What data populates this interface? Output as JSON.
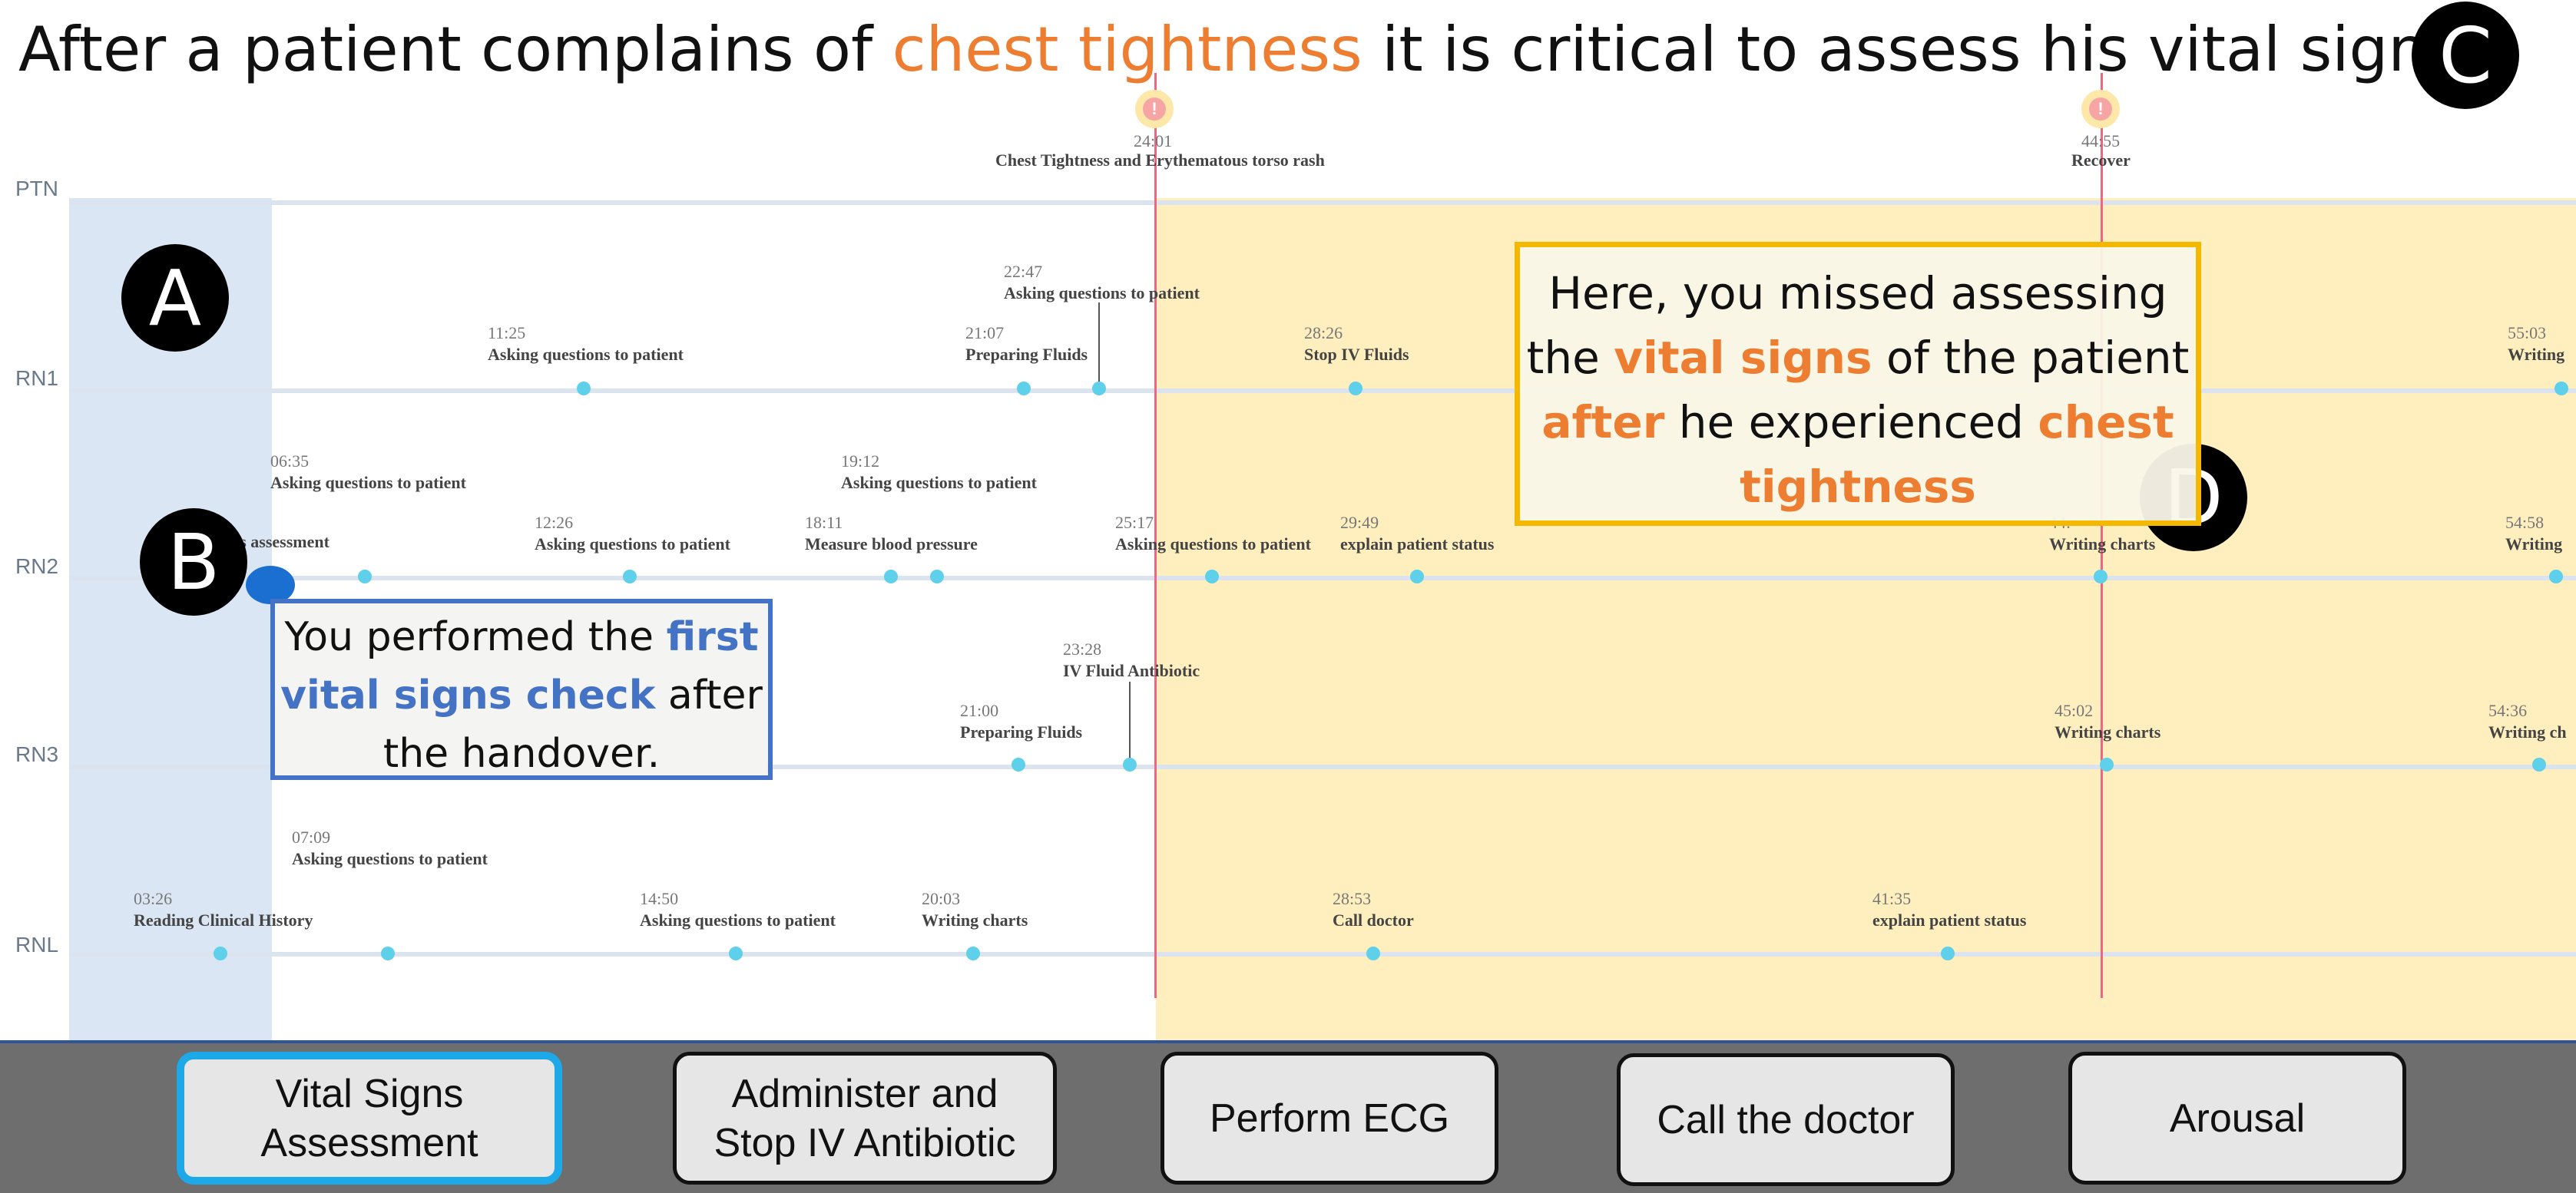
{
  "headline": {
    "before": "After a patient complains of ",
    "highlight": "chest tightness",
    "after": " it is critical to assess his vital signs"
  },
  "badges": {
    "a": "A",
    "b": "B",
    "c": "C",
    "d": "D"
  },
  "lanes": [
    "PTN",
    "RN1",
    "RN2",
    "RN3",
    "RNL"
  ],
  "markers": [
    {
      "icon": "alert-icon",
      "time": "24:01",
      "label": "Chest Tightness and Erythematous torso rash"
    },
    {
      "icon": "alert-icon",
      "time": "44:55",
      "label": "Recover"
    }
  ],
  "rn1_events": [
    {
      "time": "11:25",
      "label": "Asking questions to patient"
    },
    {
      "time": "21:07",
      "label": "Preparing Fluids"
    },
    {
      "time": "22:47",
      "label": "Asking questions to patient"
    },
    {
      "time": "28:26",
      "label": "Stop IV Fluids"
    },
    {
      "time": "55:03",
      "label": "Writing"
    }
  ],
  "rn2_events": [
    {
      "time": "",
      "label": "ns assessment"
    },
    {
      "time": "06:35",
      "label": "Asking questions to patient"
    },
    {
      "time": "12:26",
      "label": "Asking questions to patient"
    },
    {
      "time": "18:11",
      "label": "Measure blood pressure"
    },
    {
      "time": "19:12",
      "label": "Asking questions to patient"
    },
    {
      "time": "25:17",
      "label": "Asking questions to patient"
    },
    {
      "time": "29:49",
      "label": "explain patient status"
    },
    {
      "time": "44:",
      "label": "Writing charts"
    },
    {
      "time": "54:58",
      "label": "Writing"
    }
  ],
  "rn3_events": [
    {
      "time": "21:00",
      "label": "Preparing Fluids"
    },
    {
      "time": "23:28",
      "label": "IV Fluid Antibiotic"
    },
    {
      "time": "45:02",
      "label": "Writing charts"
    },
    {
      "time": "54:36",
      "label": "Writing ch"
    }
  ],
  "rnl_events": [
    {
      "time": "03:26",
      "label": "Reading Clinical History"
    },
    {
      "time": "07:09",
      "label": "Asking questions to patient"
    },
    {
      "time": "14:50",
      "label": "Asking questions to patient"
    },
    {
      "time": "20:03",
      "label": "Writing charts"
    },
    {
      "time": "28:53",
      "label": "Call doctor"
    },
    {
      "time": "41:35",
      "label": "explain patient status"
    }
  ],
  "callout_b": {
    "line1_a": "You performed the ",
    "line1_b": "first",
    "line2_a": "vital signs check",
    "line2_b": " after",
    "line3": "the handover."
  },
  "callout_d": {
    "l1": "Here, you missed assessing",
    "l2_a": "the ",
    "l2_b": "vital signs",
    "l2_c": " of the patient",
    "l3_a": "after",
    "l3_b": " he experienced ",
    "l3_c": "chest",
    "l4": "tightness"
  },
  "tasks": [
    {
      "line1": "Vital Signs",
      "line2": "Assessment",
      "active": true
    },
    {
      "line1": "Administer and",
      "line2": "Stop IV Antibiotic",
      "active": false
    },
    {
      "line1": "Perform ECG",
      "line2": "",
      "active": false
    },
    {
      "line1": "Call the doctor",
      "line2": "",
      "active": false
    },
    {
      "line1": "Arousal",
      "line2": "",
      "active": false
    }
  ],
  "colors": {
    "accent_orange": "#ed7d31",
    "accent_blue": "#4472c4",
    "dot": "#5ed0ea",
    "marker_line": "#f06484",
    "active_border": "#1da8e8"
  }
}
